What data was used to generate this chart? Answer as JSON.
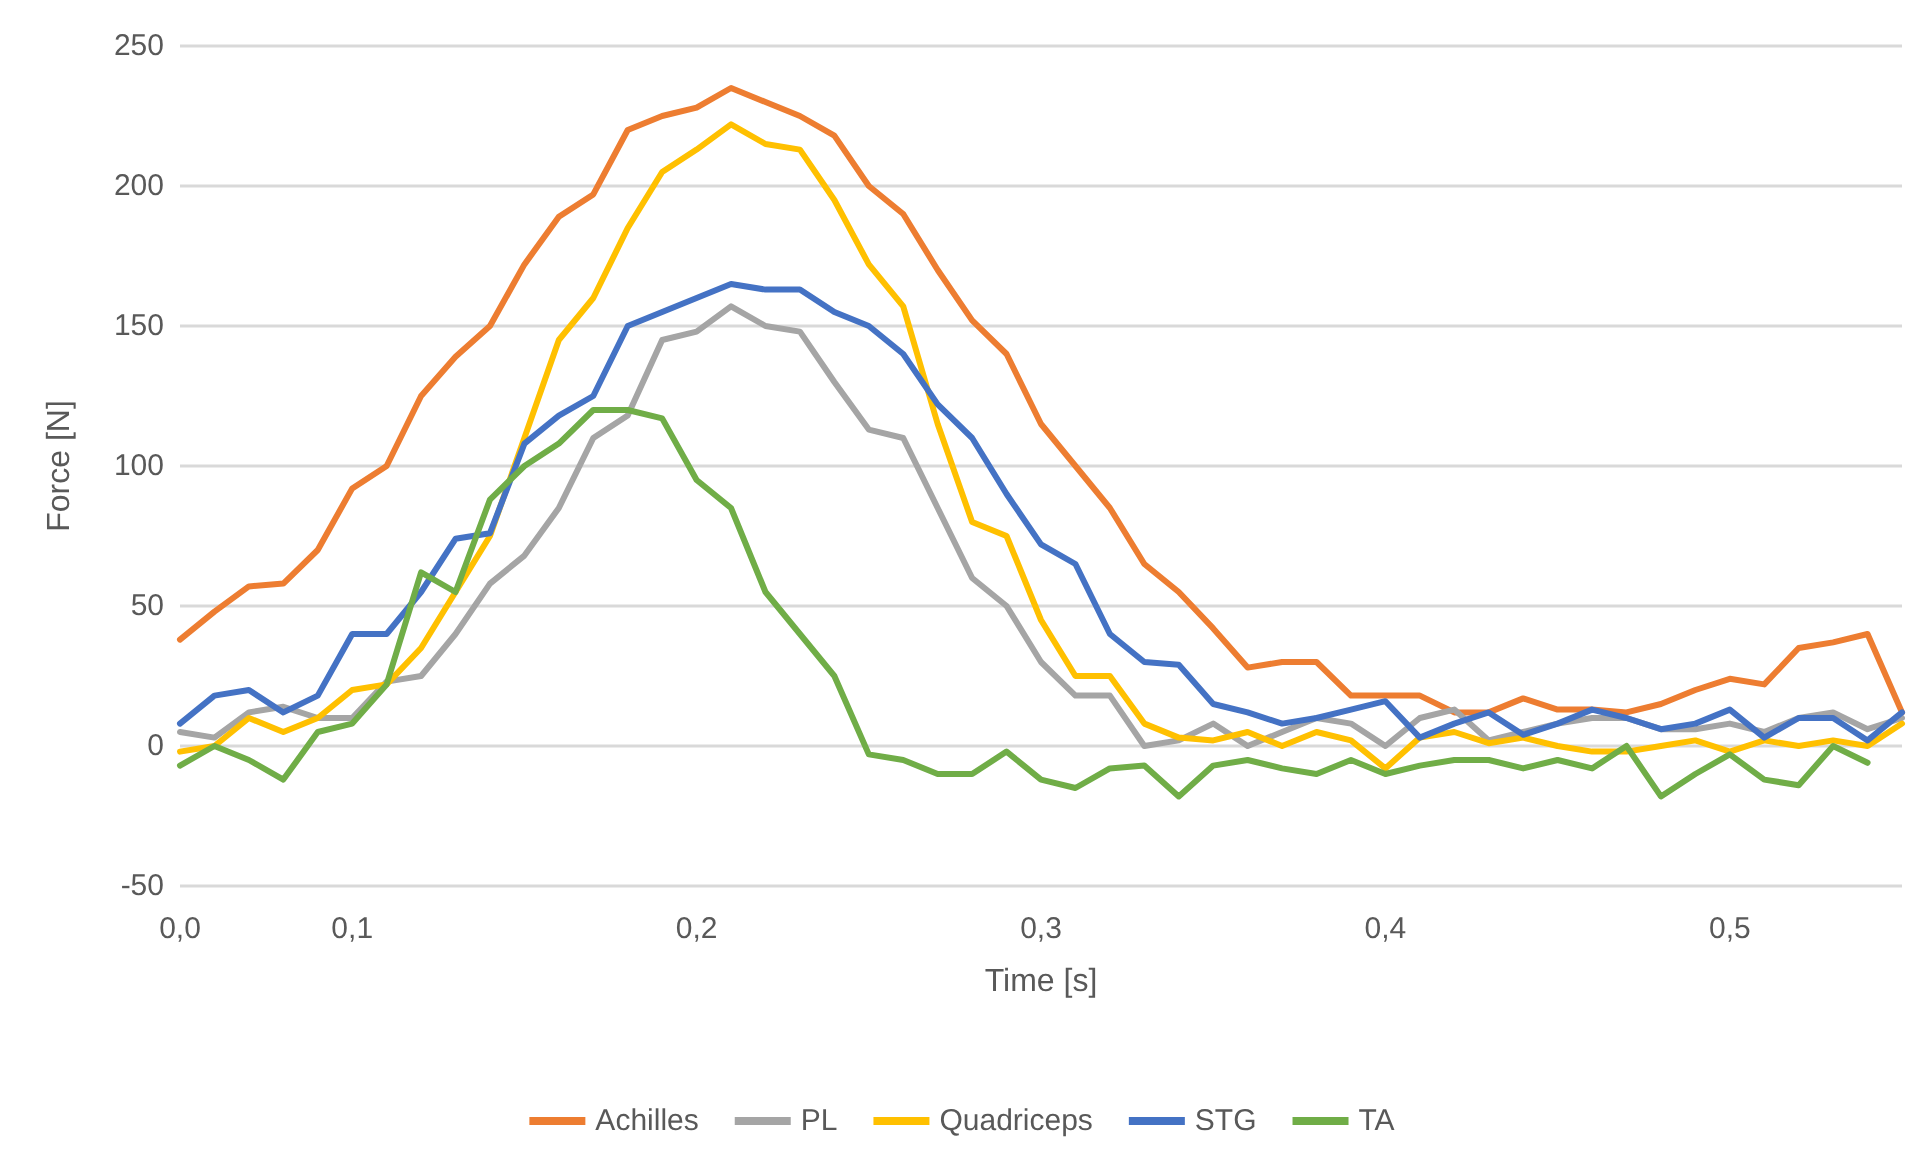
{
  "chart_data": {
    "type": "line",
    "xlabel": "Time [s]",
    "ylabel": "Force [N]",
    "categories": [
      "0,0",
      null,
      null,
      null,
      null,
      "0,1",
      null,
      null,
      null,
      null,
      null,
      null,
      null,
      null,
      null,
      "0,2",
      null,
      null,
      null,
      null,
      null,
      null,
      null,
      null,
      null,
      "0,3",
      null,
      null,
      null,
      null,
      null,
      null,
      null,
      null,
      null,
      "0,4",
      null,
      null,
      null,
      null,
      null,
      null,
      null,
      null,
      null,
      "0,5",
      null,
      null,
      null,
      null,
      null
    ],
    "series": [
      {
        "name": "Achilles",
        "color": "#ed7d31",
        "values": [
          38,
          48,
          57,
          58,
          70,
          92,
          100,
          125,
          139,
          150,
          172,
          189,
          197,
          220,
          225,
          228,
          235,
          230,
          225,
          218,
          200,
          190,
          170,
          152,
          140,
          115,
          100,
          85,
          65,
          55,
          42,
          28,
          30,
          30,
          18,
          18,
          18,
          12,
          12,
          17,
          13,
          13,
          12,
          15,
          20,
          24,
          22,
          35,
          37,
          40,
          12
        ]
      },
      {
        "name": "PL",
        "color": "#a5a5a5",
        "values": [
          5,
          3,
          12,
          14,
          10,
          10,
          23,
          25,
          40,
          58,
          68,
          85,
          110,
          118,
          145,
          148,
          157,
          150,
          148,
          130,
          113,
          110,
          85,
          60,
          50,
          30,
          18,
          18,
          0,
          2,
          8,
          0,
          5,
          10,
          8,
          0,
          10,
          13,
          2,
          5,
          8,
          10,
          10,
          6,
          6,
          8,
          5,
          10,
          12,
          6,
          10
        ]
      },
      {
        "name": "Quadriceps",
        "color": "#ffc000",
        "values": [
          -2,
          0,
          10,
          5,
          10,
          20,
          22,
          35,
          55,
          75,
          110,
          145,
          160,
          185,
          205,
          213,
          222,
          215,
          213,
          195,
          172,
          157,
          115,
          80,
          75,
          45,
          25,
          25,
          8,
          3,
          2,
          5,
          0,
          5,
          2,
          -8,
          3,
          5,
          1,
          3,
          0,
          -2,
          -2,
          0,
          2,
          -2,
          2,
          0,
          2,
          0,
          8
        ]
      },
      {
        "name": "STG",
        "color": "#4472c4",
        "values": [
          8,
          18,
          20,
          12,
          18,
          40,
          40,
          55,
          74,
          76,
          108,
          118,
          125,
          150,
          155,
          160,
          165,
          163,
          163,
          155,
          150,
          140,
          122,
          110,
          90,
          72,
          65,
          40,
          30,
          29,
          15,
          12,
          8,
          10,
          13,
          16,
          3,
          8,
          12,
          4,
          8,
          13,
          10,
          6,
          8,
          13,
          3,
          10,
          10,
          2,
          12
        ]
      },
      {
        "name": "TA",
        "color": "#70ad47",
        "values": [
          -7,
          0,
          -5,
          -12,
          5,
          8,
          22,
          62,
          55,
          88,
          100,
          108,
          120,
          120,
          117,
          95,
          85,
          55,
          40,
          25,
          -3,
          -5,
          -10,
          -10,
          -2,
          -12,
          -15,
          -8,
          -7,
          -18,
          -7,
          -5,
          -8,
          -10,
          -5,
          -10,
          -7,
          -5,
          -5,
          -8,
          -5,
          -8,
          0,
          -18,
          -10,
          -3,
          -12,
          -14,
          0,
          -6,
          null
        ]
      }
    ],
    "ylim": [
      -50,
      250
    ],
    "yticks": [
      -50,
      0,
      50,
      100,
      150,
      200,
      250
    ],
    "grid": "y",
    "legend": "bottom",
    "marker": "none",
    "line_style": "solid"
  }
}
